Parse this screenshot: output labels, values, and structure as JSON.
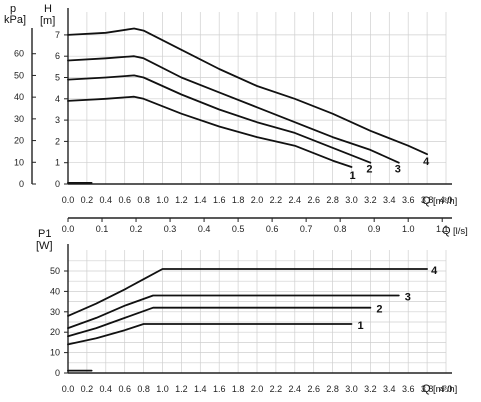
{
  "chart_data": [
    {
      "type": "line",
      "title": "",
      "xlabel": "Q [m³/h]",
      "ylabel": "H [m]",
      "secondary_ylabel": "p kPa]",
      "secondary_xlabel": "Q [l/s]",
      "xlim": [
        0,
        4.0
      ],
      "ylim": [
        0,
        7.5
      ],
      "x_ticks": [
        "0.0",
        "0.2",
        "0.4",
        "0.6",
        "0.8",
        "1.0",
        "1.2",
        "1.4",
        "1.6",
        "1.8",
        "2.0",
        "2.2",
        "2.4",
        "2.6",
        "2.8",
        "3.0",
        "3.2",
        "3.4",
        "3.6",
        "3.8",
        "4.0"
      ],
      "y_ticks": [
        "0",
        "1",
        "2",
        "3",
        "4",
        "5",
        "6",
        "7"
      ],
      "kpa_ticks": [
        "0",
        "10",
        "20",
        "30",
        "40",
        "50",
        "60"
      ],
      "ls_ticks": [
        "0.0",
        "0.1",
        "0.2",
        "0.3",
        "0.4",
        "0.5",
        "0.6",
        "0.7",
        "0.8",
        "0.9",
        "1.0",
        "1.1"
      ],
      "grid": true,
      "series": [
        {
          "name": "1",
          "x": [
            0.0,
            0.4,
            0.7,
            0.8,
            1.2,
            1.6,
            2.0,
            2.4,
            2.8,
            3.0
          ],
          "y": [
            3.9,
            4.0,
            4.1,
            4.0,
            3.3,
            2.7,
            2.2,
            1.8,
            1.1,
            0.8
          ]
        },
        {
          "name": "2",
          "x": [
            0.0,
            0.4,
            0.7,
            0.8,
            1.2,
            1.6,
            2.0,
            2.4,
            2.8,
            3.2
          ],
          "y": [
            4.9,
            5.0,
            5.1,
            5.0,
            4.2,
            3.5,
            2.9,
            2.4,
            1.7,
            1.0
          ]
        },
        {
          "name": "3",
          "x": [
            0.0,
            0.4,
            0.7,
            0.8,
            1.2,
            1.6,
            2.0,
            2.4,
            2.8,
            3.2,
            3.5
          ],
          "y": [
            5.8,
            5.9,
            6.0,
            5.9,
            5.0,
            4.3,
            3.6,
            2.9,
            2.2,
            1.6,
            1.0
          ]
        },
        {
          "name": "4",
          "x": [
            0.0,
            0.4,
            0.7,
            0.8,
            1.2,
            1.6,
            2.0,
            2.4,
            2.8,
            3.2,
            3.6,
            3.8
          ],
          "y": [
            7.0,
            7.1,
            7.3,
            7.2,
            6.3,
            5.4,
            4.6,
            4.0,
            3.3,
            2.5,
            1.8,
            1.4
          ]
        },
        {
          "name": "",
          "x": [
            0.0,
            0.25
          ],
          "y": [
            0.05,
            0.05
          ]
        }
      ],
      "curve_labels": [
        "1",
        "2",
        "3",
        "4"
      ]
    },
    {
      "type": "line",
      "title": "",
      "xlabel": "Q [m³/h]",
      "ylabel": "P1 [W]",
      "xlim": [
        0,
        4.0
      ],
      "ylim": [
        0,
        55
      ],
      "x_ticks": [
        "0.0",
        "0.2",
        "0.4",
        "0.6",
        "0.8",
        "1.0",
        "1.2",
        "1.4",
        "1.6",
        "1.8",
        "2.0",
        "2.2",
        "2.4",
        "2.6",
        "2.8",
        "3.0",
        "3.2",
        "3.4",
        "3.6",
        "3.8",
        "4.0"
      ],
      "y_ticks": [
        "0",
        "10",
        "20",
        "30",
        "40",
        "50"
      ],
      "grid": true,
      "series": [
        {
          "name": "1",
          "x": [
            0.0,
            0.3,
            0.6,
            0.8,
            1.2,
            2.0,
            3.0
          ],
          "y": [
            14,
            17,
            21,
            24,
            24,
            24,
            24
          ]
        },
        {
          "name": "2",
          "x": [
            0.0,
            0.3,
            0.6,
            0.9,
            1.2,
            2.0,
            3.2
          ],
          "y": [
            18,
            22,
            27,
            32,
            32,
            32,
            32
          ]
        },
        {
          "name": "3",
          "x": [
            0.0,
            0.3,
            0.6,
            0.9,
            1.2,
            2.0,
            3.5
          ],
          "y": [
            22,
            27,
            33,
            38,
            38,
            38,
            38
          ]
        },
        {
          "name": "4",
          "x": [
            0.0,
            0.3,
            0.6,
            0.8,
            1.0,
            2.0,
            3.8
          ],
          "y": [
            28,
            34,
            41,
            46,
            51,
            51,
            51
          ]
        },
        {
          "name": "",
          "x": [
            0.0,
            0.25
          ],
          "y": [
            1.2,
            1.2
          ]
        }
      ],
      "curve_labels": [
        "1",
        "2",
        "3",
        "4"
      ]
    }
  ],
  "labels": {
    "p": "p",
    "kpa": "kPa]",
    "h": "H",
    "h_unit": "[m]",
    "p1": "P1",
    "p1_unit": "[W]",
    "q": "Q",
    "q_unit_m3h": "[m³/h]",
    "q_unit_ls": "[l/s]"
  }
}
